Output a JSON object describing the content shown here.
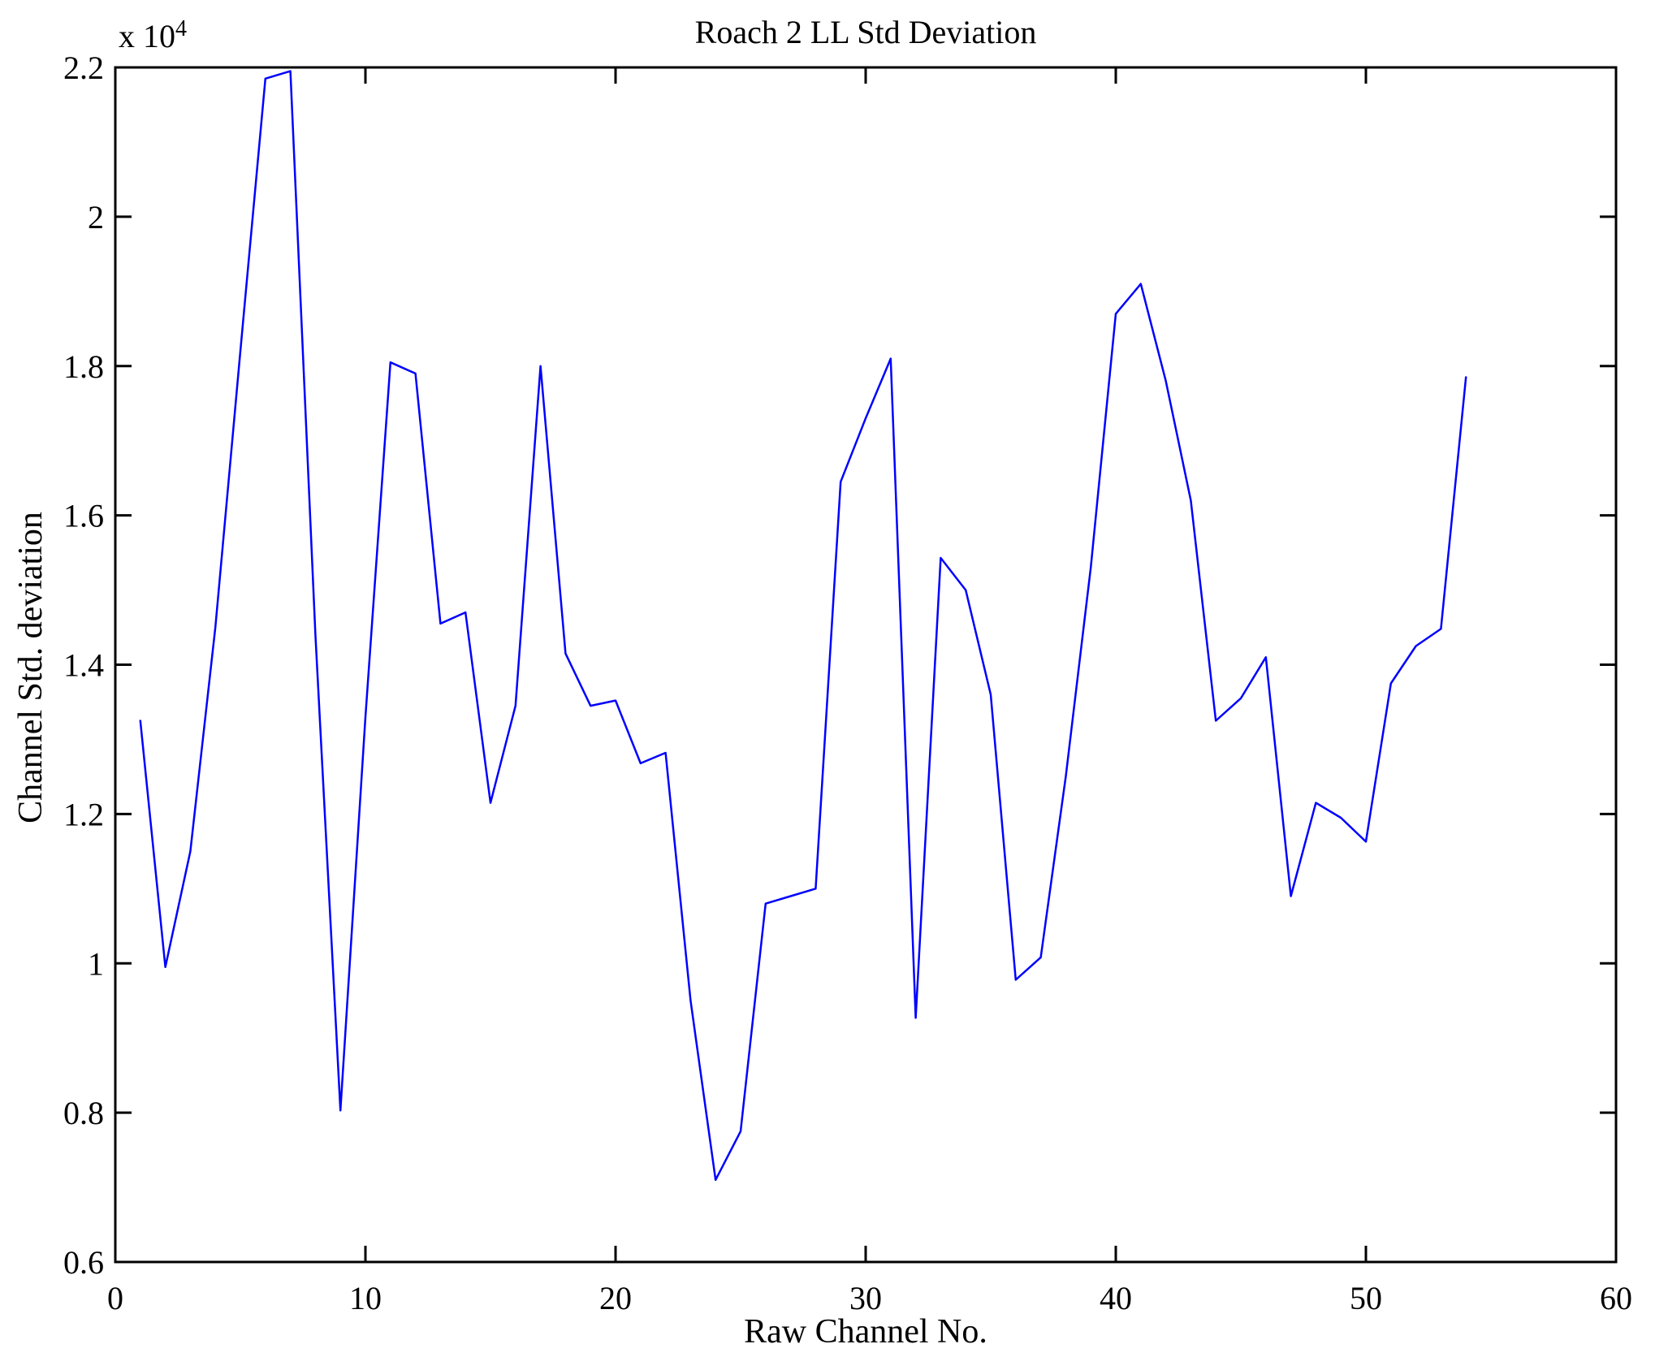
{
  "chart_data": {
    "type": "line",
    "title": "Roach 2 LL Std Deviation",
    "xlabel": "Raw Channel No.",
    "ylabel": "Channel Std. deviation",
    "offset_text_base": "x 10",
    "offset_text_exponent": "4",
    "line_color": "#0000FF",
    "axis_color": "#000000",
    "background_color": "#ffffff",
    "grid": false,
    "legend": null,
    "xlim": [
      0,
      60
    ],
    "ylim_e4": [
      0.6,
      2.2
    ],
    "y_unit_multiplier": 10000,
    "xticks": [
      0,
      10,
      20,
      30,
      40,
      50,
      60
    ],
    "yticks_e4": [
      "0.6",
      "0.8",
      "1",
      "1.2",
      "1.4",
      "1.6",
      "1.8",
      "2",
      "2.2"
    ],
    "x": [
      1,
      2,
      3,
      4,
      5,
      6,
      7,
      8,
      9,
      10,
      11,
      12,
      13,
      14,
      15,
      16,
      17,
      18,
      19,
      20,
      21,
      22,
      23,
      24,
      25,
      26,
      27,
      28,
      29,
      30,
      31,
      32,
      33,
      34,
      35,
      36,
      37,
      38,
      39,
      40,
      41,
      42,
      43,
      44,
      45,
      46,
      47,
      48,
      49,
      50,
      51,
      52,
      53,
      54
    ],
    "values_e4": [
      1.325,
      0.995,
      1.15,
      1.45,
      1.82,
      2.185,
      2.195,
      1.44,
      0.803,
      1.33,
      1.805,
      1.79,
      1.455,
      1.47,
      1.215,
      1.345,
      1.8,
      1.415,
      1.345,
      1.352,
      1.268,
      1.282,
      0.95,
      0.71,
      0.775,
      1.08,
      1.09,
      1.1,
      1.645,
      1.73,
      1.81,
      0.927,
      1.543,
      1.5,
      1.36,
      0.978,
      1.008,
      1.25,
      1.53,
      1.87,
      1.91,
      1.78,
      1.62,
      1.325,
      1.355,
      1.41,
      1.09,
      1.215,
      1.195,
      1.163,
      1.375,
      1.425,
      1.448,
      1.785
    ]
  }
}
